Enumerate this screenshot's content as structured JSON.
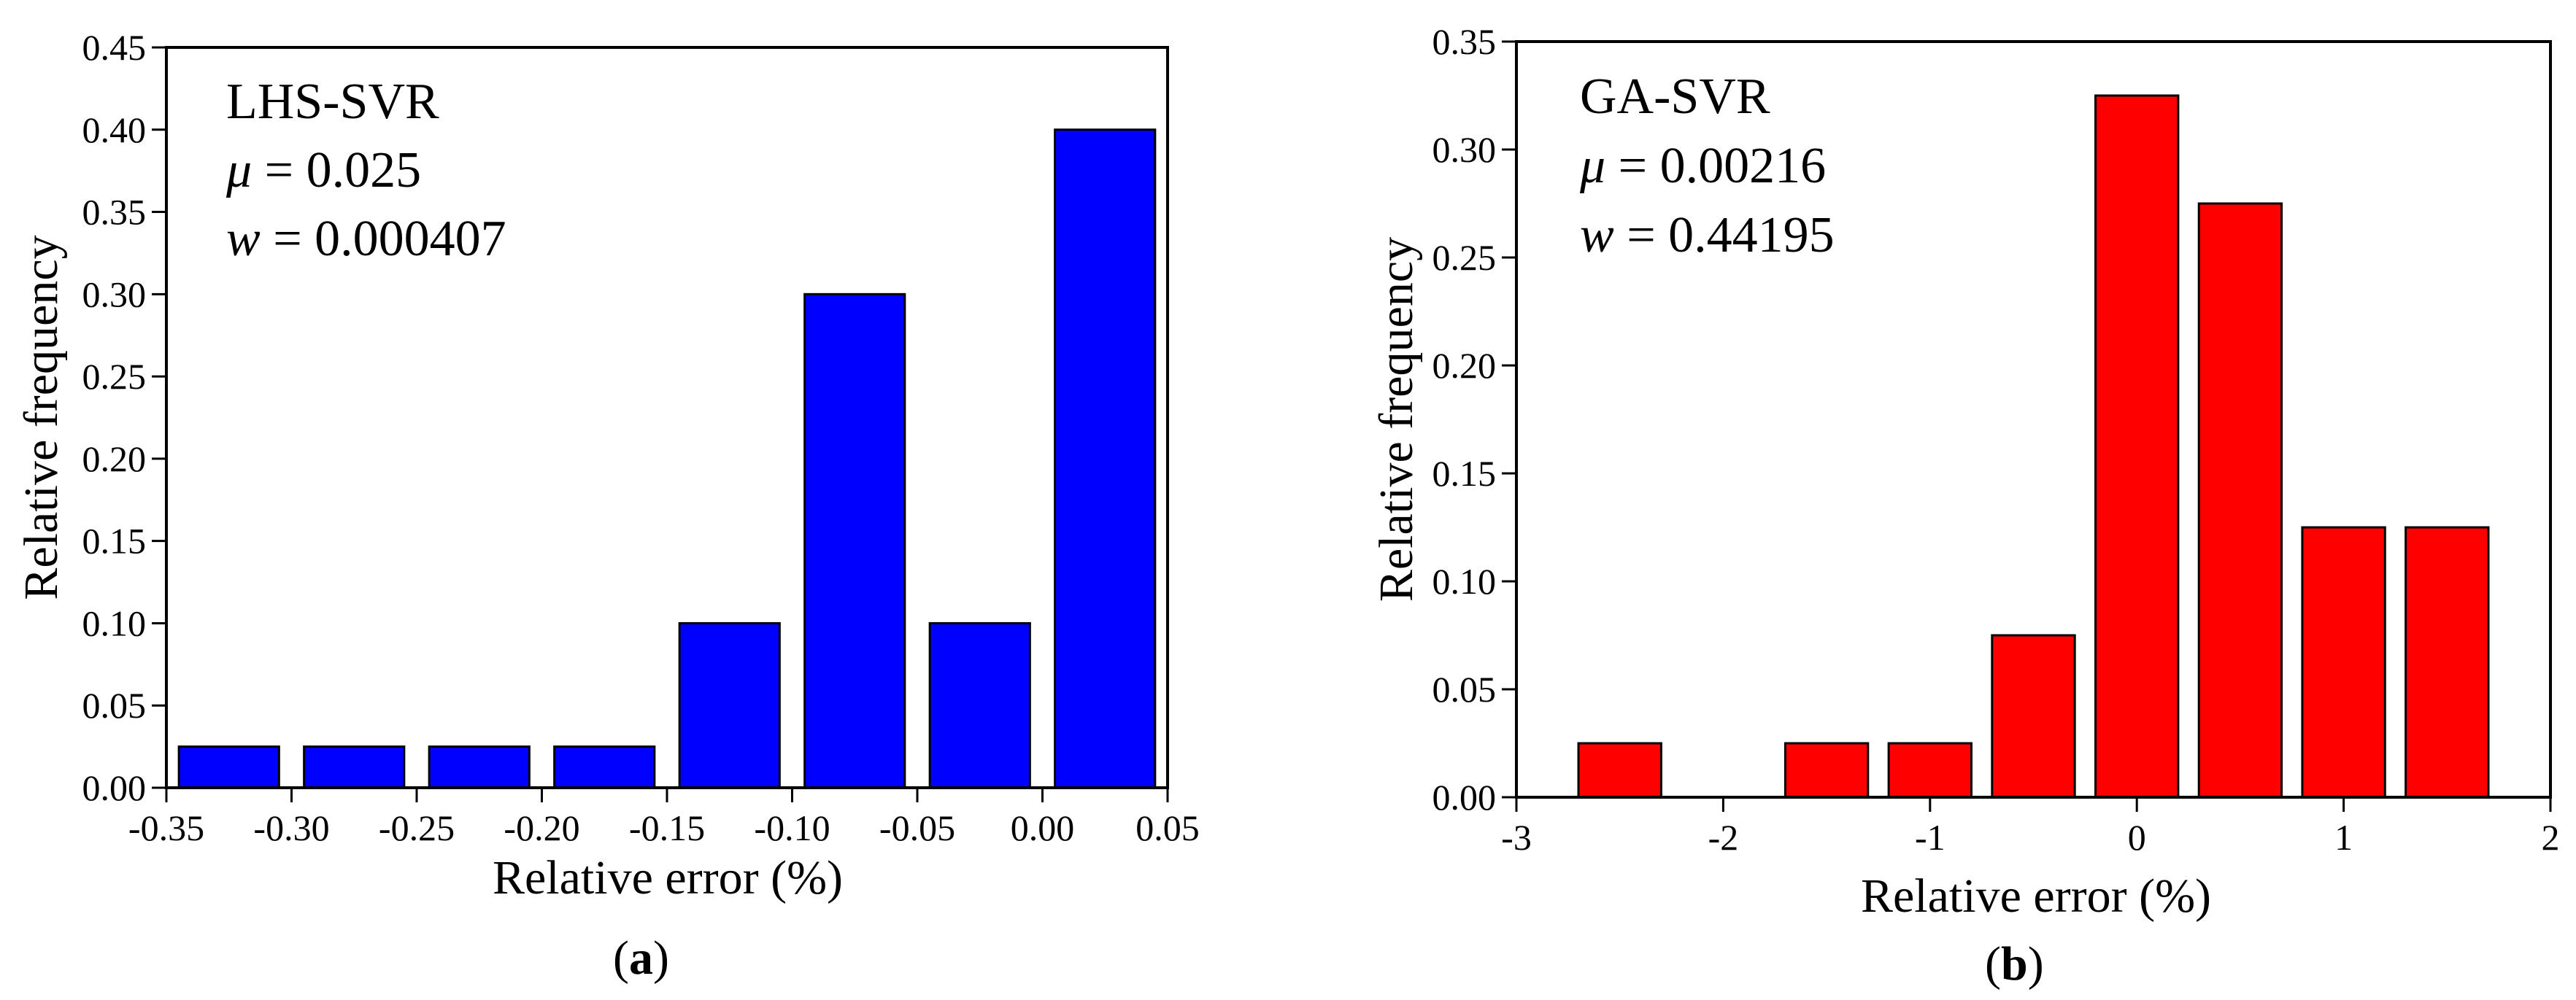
{
  "chart_data": [
    {
      "type": "bar",
      "panel_label": "(a)",
      "panel_label_parts": [
        "(",
        "a",
        ")"
      ],
      "annotations": [
        {
          "text": "LHS-SVR"
        },
        {
          "symbol": "μ",
          "rest": " = 0.025"
        },
        {
          "symbol": "w",
          "rest": " = 0.000407"
        }
      ],
      "xlabel": "Relative error (%)",
      "ylabel": "Relative frequency",
      "xlim": [
        -0.35,
        0.05
      ],
      "ylim": [
        0,
        0.45
      ],
      "xticks": [
        -0.35,
        -0.3,
        -0.25,
        -0.2,
        -0.15,
        -0.1,
        -0.05,
        0.0,
        0.05
      ],
      "xtick_labels": [
        "-0.35",
        "-0.30",
        "-0.25",
        "-0.20",
        "-0.15",
        "-0.10",
        "-0.05",
        "0.00",
        "0.05"
      ],
      "yticks": [
        0,
        0.05,
        0.1,
        0.15,
        0.2,
        0.25,
        0.3,
        0.35,
        0.4,
        0.45
      ],
      "ytick_labels": [
        "0.00",
        "0.05",
        "0.10",
        "0.15",
        "0.20",
        "0.25",
        "0.30",
        "0.35",
        "0.40",
        "0.45"
      ],
      "bin_edges": [
        -0.35,
        -0.3,
        -0.25,
        -0.2,
        -0.15,
        -0.1,
        -0.05,
        0.0,
        0.05
      ],
      "values": [
        0.025,
        0.025,
        0.025,
        0.025,
        0.1,
        0.3,
        0.1,
        0.4
      ],
      "bar_width_fraction": 0.8,
      "bar_color": "#0000ff",
      "grid": false
    },
    {
      "type": "bar",
      "panel_label": "(b)",
      "panel_label_parts": [
        "(",
        "b",
        ")"
      ],
      "annotations": [
        {
          "text": "GA-SVR"
        },
        {
          "symbol": "μ",
          "rest": " = 0.00216"
        },
        {
          "symbol": "w",
          "rest": " = 0.44195"
        }
      ],
      "xlabel": "Relative error (%)",
      "ylabel": "Relative frequency",
      "xlim": [
        -3,
        2
      ],
      "ylim": [
        0,
        0.35
      ],
      "xticks": [
        -3,
        -2,
        -1,
        0,
        1,
        2
      ],
      "xtick_labels": [
        "-3",
        "-2",
        "-1",
        "0",
        "1",
        "2"
      ],
      "yticks": [
        0,
        0.05,
        0.1,
        0.15,
        0.2,
        0.25,
        0.3,
        0.35
      ],
      "ytick_labels": [
        "0.00",
        "0.05",
        "0.10",
        "0.15",
        "0.20",
        "0.25",
        "0.30",
        "0.35"
      ],
      "bin_edges": [
        -2.75,
        -2.25,
        -1.75,
        -1.25,
        -0.75,
        -0.25,
        0.25,
        0.75,
        1.25,
        1.75
      ],
      "values": [
        0.025,
        0.0,
        0.025,
        0.025,
        0.075,
        0.325,
        0.275,
        0.125,
        0.125
      ],
      "bar_width_fraction": 0.8,
      "bar_color": "#ff0000",
      "grid": false
    }
  ]
}
